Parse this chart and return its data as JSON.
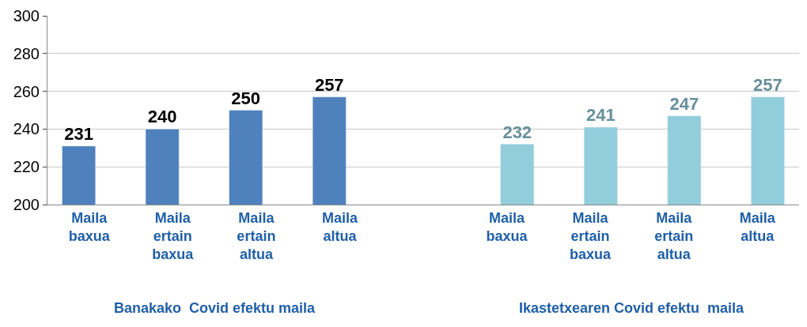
{
  "chart_data": {
    "type": "bar",
    "categories": [
      "Maila baxua",
      "Maila ertain baxua",
      "Maila ertain altua",
      "Maila altua",
      null,
      "Maila baxua",
      "Maila ertain baxua",
      "Maila ertain altua",
      "Maila altua"
    ],
    "series": [
      {
        "color": "#4f81bd",
        "values": [
          231,
          240,
          250,
          257,
          null,
          null,
          null,
          null,
          null
        ]
      },
      {
        "color": "#92cddc",
        "values": [
          null,
          null,
          null,
          null,
          null,
          232,
          241,
          247,
          257
        ]
      }
    ],
    "annotations": [
      "Banakako  Covid efektu maila",
      "Ikastetxearen Covid efektu  maila"
    ],
    "ylim": [
      200,
      300
    ],
    "yticks": [
      200,
      220,
      240,
      260,
      280,
      300
    ],
    "grid": "y",
    "data_labels": true
  }
}
